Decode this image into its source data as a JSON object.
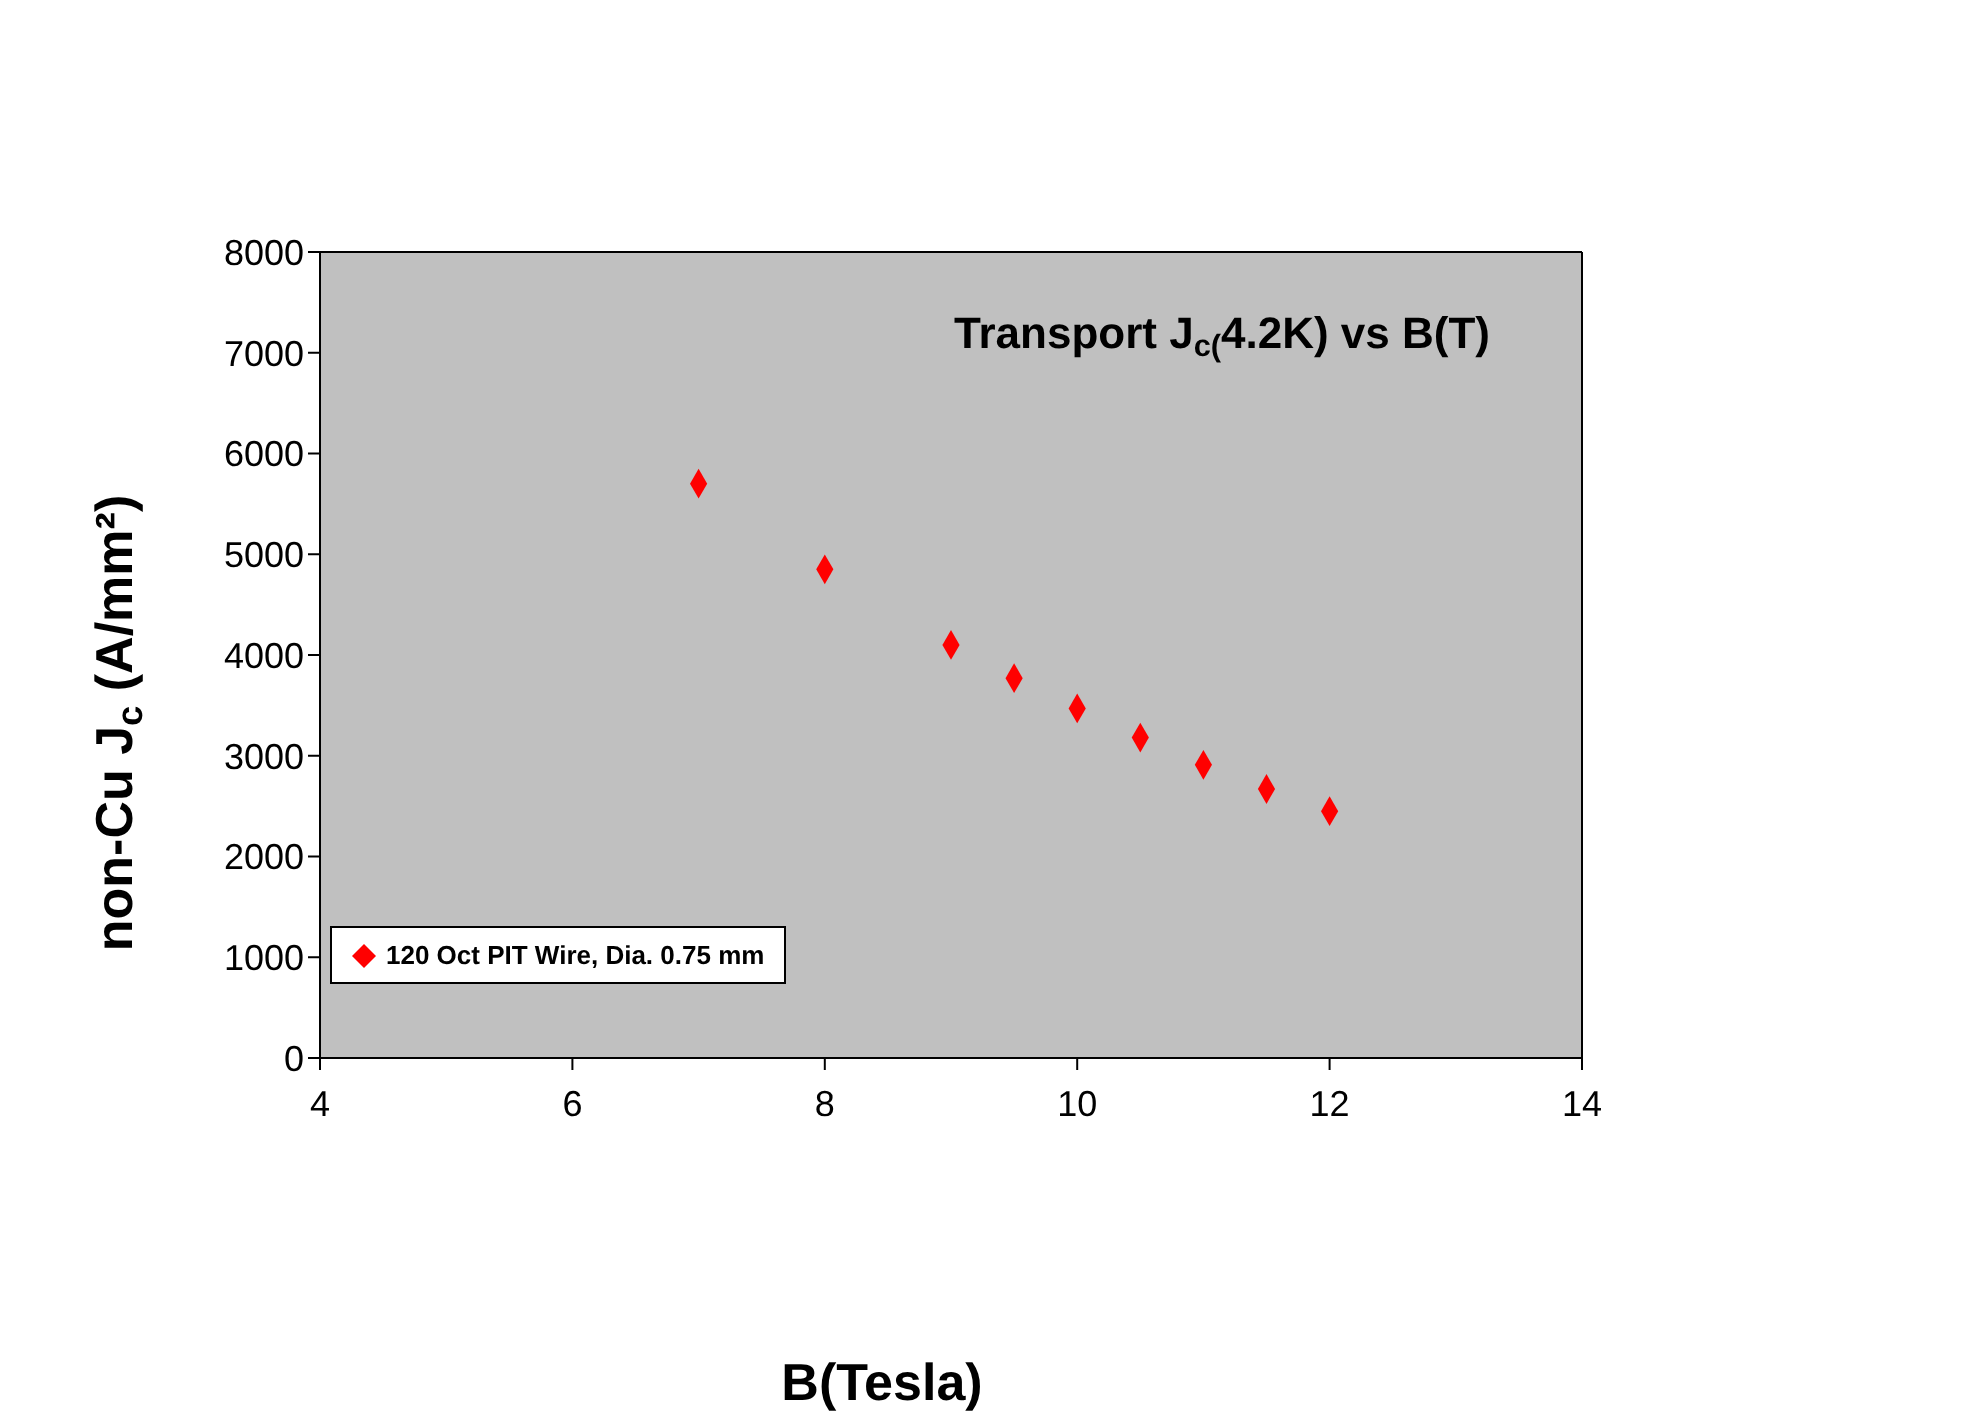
{
  "chart_data": {
    "type": "scatter",
    "title": "Transport J$_{c(}$4.2K) vs B(T)",
    "xlabel": "B(Tesla)",
    "ylabel": "non-Cu J$_{c}$ (A/mm²)",
    "x": [
      7,
      8,
      9,
      9.5,
      10,
      10.5,
      11,
      11.5,
      12
    ],
    "series": [
      {
        "name": "120 Oct PIT Wire, Dia. 0.75 mm",
        "color": "#ff0000",
        "values": [
          5700,
          4850,
          4100,
          3770,
          3470,
          3180,
          2910,
          2670,
          2450
        ]
      }
    ],
    "xlim": [
      4,
      14
    ],
    "xticks": [
      4,
      6,
      8,
      10,
      12,
      14
    ],
    "ylim": [
      0,
      8000
    ],
    "yticks": [
      0,
      1000,
      2000,
      3000,
      4000,
      5000,
      6000,
      7000,
      8000
    ],
    "grid": false,
    "legend": "left",
    "marker": "diamond"
  }
}
